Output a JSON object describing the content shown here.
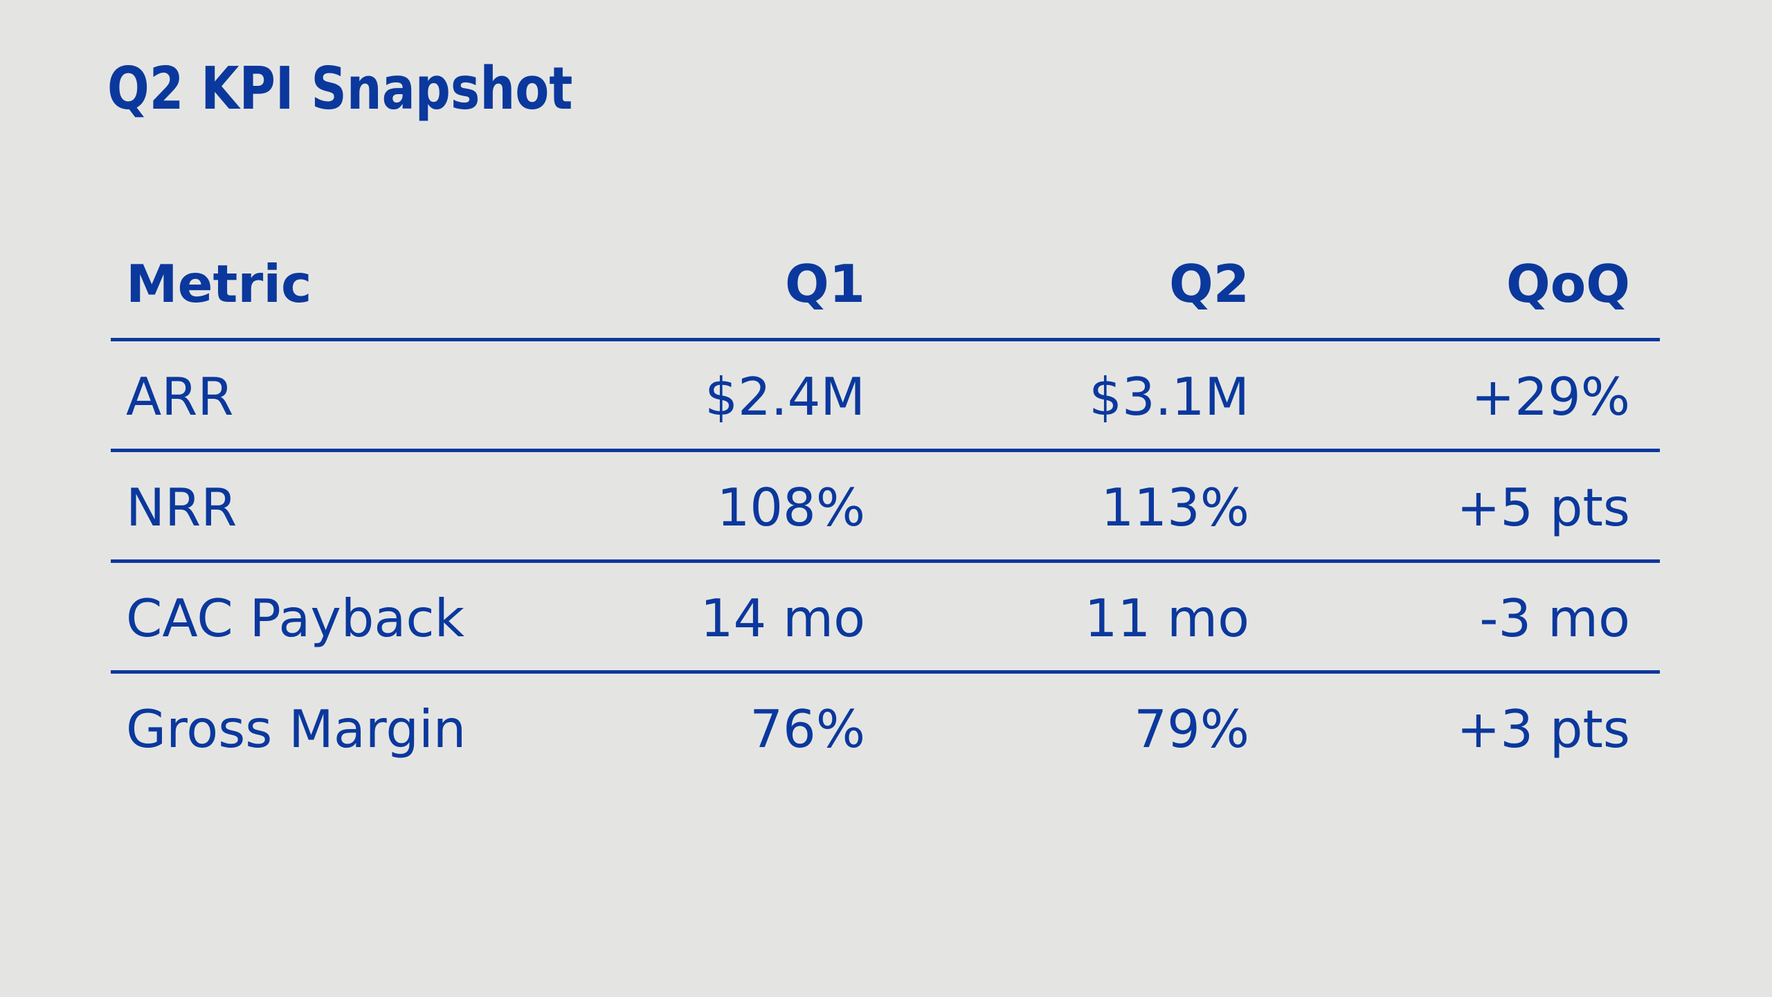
{
  "page": {
    "background_color": "#e4e5e3",
    "accent_color": "#0b389d"
  },
  "title": "Q2 KPI Snapshot",
  "table": {
    "columns": [
      "Metric",
      "Q1",
      "Q2",
      "QoQ"
    ],
    "rows": [
      {
        "metric": "ARR",
        "q1": "$2.4M",
        "q2": "$3.1M",
        "qoq": "+29%"
      },
      {
        "metric": "NRR",
        "q1": "108%",
        "q2": "113%",
        "qoq": "+5 pts"
      },
      {
        "metric": "CAC Payback",
        "q1": "14 mo",
        "q2": "11 mo",
        "qoq": "-3 mo"
      },
      {
        "metric": "Gross Margin",
        "q1": "76%",
        "q2": "79%",
        "qoq": "+3 pts"
      }
    ]
  },
  "chart_data": {
    "type": "table",
    "title": "Q2 KPI Snapshot",
    "columns": [
      "Metric",
      "Q1",
      "Q2",
      "QoQ"
    ],
    "rows": [
      [
        "ARR",
        "$2.4M",
        "$3.1M",
        "+29%"
      ],
      [
        "NRR",
        "108%",
        "113%",
        "+5 pts"
      ],
      [
        "CAC Payback",
        "14 mo",
        "11 mo",
        "-3 mo"
      ],
      [
        "Gross Margin",
        "76%",
        "79%",
        "+3 pts"
      ]
    ],
    "notes": {
      "text_color": "#0b389d",
      "background_color": "#e4e5e3",
      "grid": "horizontal rules under header and between rows, none after last row",
      "alignment": "first column left-aligned, value columns right-aligned"
    }
  }
}
